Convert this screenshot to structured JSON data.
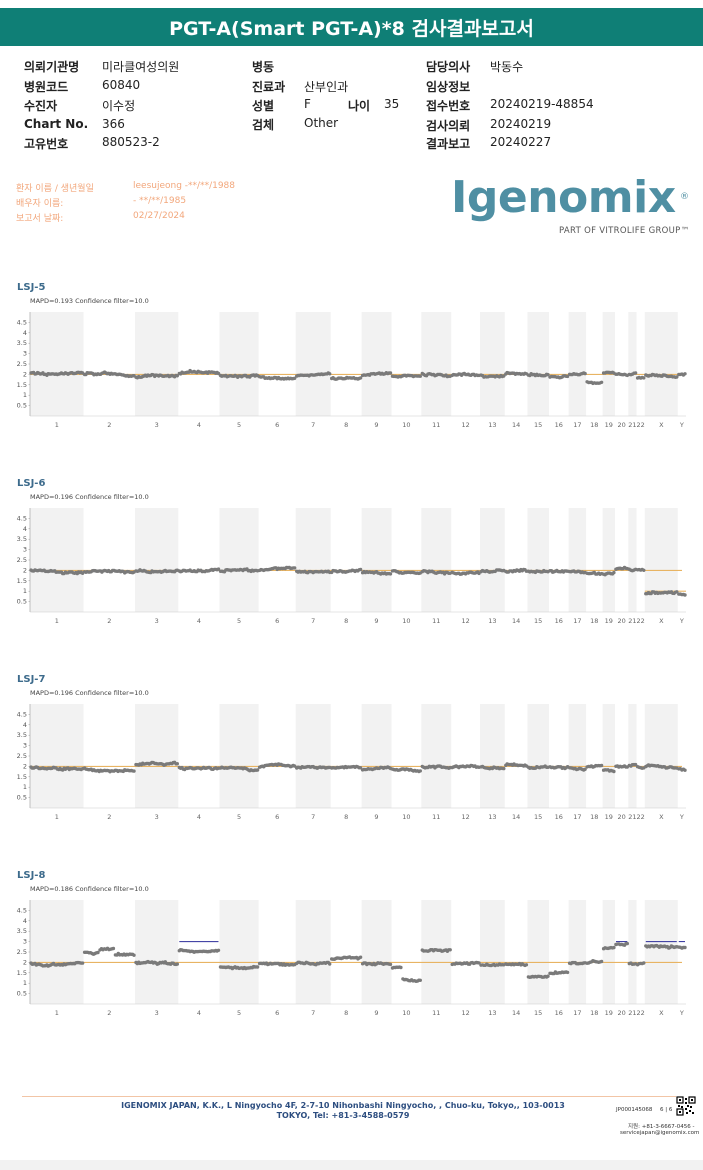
{
  "header": {
    "title": "PGT-A(Smart PGT-A)*8 검사결과보고서"
  },
  "info": [
    {
      "label": "의뢰기관명",
      "value": "미라클여성의원"
    },
    {
      "label": "병원코드",
      "value": "60840"
    },
    {
      "label": "수진자",
      "value": "이수정"
    },
    {
      "label": "Chart No.",
      "value": "366"
    },
    {
      "label": "고유번호",
      "value": "880523-2"
    },
    {
      "label": "병동",
      "value": ""
    },
    {
      "label": "진료과",
      "value": "산부인과"
    },
    {
      "label": "성별",
      "value": "F"
    },
    {
      "label": "나이",
      "value": "35"
    },
    {
      "label": "검체",
      "value": "Other"
    },
    {
      "label": "담당의사",
      "value": "박동수"
    },
    {
      "label": "임상정보",
      "value": ""
    },
    {
      "label": "접수번호",
      "value": "20240219-48854"
    },
    {
      "label": "검사의뢰",
      "value": "20240219"
    },
    {
      "label": "결과보고",
      "value": "20240227"
    }
  ],
  "patient": [
    {
      "label": "환자 이름 / 생년월일",
      "value": "leesujeong -**/**/1988"
    },
    {
      "label": "배우자 이름:",
      "value": "- **/**/1985"
    },
    {
      "label": "보고서 날짜:",
      "value": "02/27/2024"
    }
  ],
  "logo": {
    "word": "Igenomix",
    "reg": "®",
    "sub": "PART OF VITROLIFE GROUP™"
  },
  "colors": {
    "header": "#0f7f76",
    "band": "#f2f2f2",
    "points": "#7a7a7a",
    "ref": "#e8b463",
    "gain": "#2c2c9a",
    "title": "#3d6b8c"
  },
  "chart_data": [
    {
      "type": "scatter",
      "title": "LSJ-5",
      "subtitle": "MAPD=0.193 Confidence filter=10.0",
      "ylim": [
        0,
        5
      ],
      "y_ticks": [
        "4.5",
        "4",
        "3.5",
        "3",
        "2.5",
        "2",
        "1.5",
        "1",
        "0.5"
      ],
      "categories": [
        "1",
        "2",
        "3",
        "4",
        "5",
        "6",
        "7",
        "8",
        "9",
        "10",
        "11",
        "12",
        "13",
        "14",
        "15",
        "16",
        "17",
        "18",
        "19",
        "20",
        "21",
        "22",
        "X",
        "Y"
      ],
      "segments": [
        {
          "chrom": "1",
          "start": 0,
          "end": 1,
          "value": 2.05
        },
        {
          "chrom": "2",
          "start": 0,
          "end": 1,
          "value": 2.0
        },
        {
          "chrom": "3",
          "start": 0,
          "end": 1,
          "value": 1.85
        },
        {
          "chrom": "4",
          "start": 0,
          "end": 1,
          "value": 2.05
        },
        {
          "chrom": "5",
          "start": 0,
          "end": 1,
          "value": 1.95
        },
        {
          "chrom": "6",
          "start": 0,
          "end": 1,
          "value": 1.9
        },
        {
          "chrom": "7",
          "start": 0,
          "end": 1,
          "value": 1.95
        },
        {
          "chrom": "8",
          "start": 0,
          "end": 1,
          "value": 1.8
        },
        {
          "chrom": "9",
          "start": 0,
          "end": 1,
          "value": 2.0
        },
        {
          "chrom": "10",
          "start": 0,
          "end": 1,
          "value": 1.95
        },
        {
          "chrom": "11",
          "start": 0,
          "end": 1,
          "value": 2.0
        },
        {
          "chrom": "12",
          "start": 0,
          "end": 1,
          "value": 1.95
        },
        {
          "chrom": "13",
          "start": 0,
          "end": 1,
          "value": 1.95
        },
        {
          "chrom": "14",
          "start": 0,
          "end": 1,
          "value": 2.05
        },
        {
          "chrom": "15",
          "start": 0,
          "end": 1,
          "value": 1.95
        },
        {
          "chrom": "16",
          "start": 0,
          "end": 1,
          "value": 1.9
        },
        {
          "chrom": "17",
          "start": 0,
          "end": 1,
          "value": 2.0
        },
        {
          "chrom": "18",
          "start": 0,
          "end": 1,
          "value": 1.6
        },
        {
          "chrom": "19",
          "start": 0,
          "end": 1,
          "value": 2.05
        },
        {
          "chrom": "20",
          "start": 0,
          "end": 1,
          "value": 2.0
        },
        {
          "chrom": "21",
          "start": 0,
          "end": 1,
          "value": 2.0
        },
        {
          "chrom": "22",
          "start": 0,
          "end": 1,
          "value": 1.8
        },
        {
          "chrom": "X",
          "start": 0,
          "end": 1,
          "value": 1.95
        },
        {
          "chrom": "Y",
          "start": 0,
          "end": 1,
          "value": 1.95
        }
      ]
    },
    {
      "type": "scatter",
      "title": "LSJ-6",
      "subtitle": "MAPD=0.196 Confidence filter=10.0",
      "ylim": [
        0,
        5
      ],
      "y_ticks": [
        "4.5",
        "4",
        "3.5",
        "3",
        "2.5",
        "2",
        "1.5",
        "1",
        "0.5"
      ],
      "categories": [
        "1",
        "2",
        "3",
        "4",
        "5",
        "6",
        "7",
        "8",
        "9",
        "10",
        "11",
        "12",
        "13",
        "14",
        "15",
        "16",
        "17",
        "18",
        "19",
        "20",
        "21",
        "22",
        "X",
        "Y"
      ],
      "segments": [
        {
          "chrom": "1",
          "start": 0,
          "end": 1,
          "value": 2.0
        },
        {
          "chrom": "2",
          "start": 0,
          "end": 1,
          "value": 1.95
        },
        {
          "chrom": "3",
          "start": 0,
          "end": 1,
          "value": 1.95
        },
        {
          "chrom": "4",
          "start": 0,
          "end": 1,
          "value": 1.95
        },
        {
          "chrom": "5",
          "start": 0,
          "end": 1,
          "value": 1.95
        },
        {
          "chrom": "6",
          "start": 0,
          "end": 1,
          "value": 2.0
        },
        {
          "chrom": "7",
          "start": 0,
          "end": 1,
          "value": 1.95
        },
        {
          "chrom": "8",
          "start": 0,
          "end": 1,
          "value": 1.95
        },
        {
          "chrom": "9",
          "start": 0,
          "end": 1,
          "value": 1.9
        },
        {
          "chrom": "10",
          "start": 0,
          "end": 1,
          "value": 1.95
        },
        {
          "chrom": "11",
          "start": 0,
          "end": 1,
          "value": 1.95
        },
        {
          "chrom": "12",
          "start": 0,
          "end": 1,
          "value": 1.9
        },
        {
          "chrom": "13",
          "start": 0,
          "end": 1,
          "value": 1.95
        },
        {
          "chrom": "14",
          "start": 0,
          "end": 1,
          "value": 1.95
        },
        {
          "chrom": "15",
          "start": 0,
          "end": 1,
          "value": 1.95
        },
        {
          "chrom": "16",
          "start": 0,
          "end": 1,
          "value": 1.95
        },
        {
          "chrom": "17",
          "start": 0,
          "end": 1,
          "value": 1.95
        },
        {
          "chrom": "18",
          "start": 0,
          "end": 1,
          "value": 1.85
        },
        {
          "chrom": "19",
          "start": 0,
          "end": 1,
          "value": 1.8
        },
        {
          "chrom": "20",
          "start": 0,
          "end": 1,
          "value": 2.05
        },
        {
          "chrom": "21",
          "start": 0,
          "end": 1,
          "value": 2.0
        },
        {
          "chrom": "22",
          "start": 0,
          "end": 1,
          "value": 2.0
        },
        {
          "chrom": "X",
          "start": 0,
          "end": 1,
          "value": 0.9
        },
        {
          "chrom": "Y",
          "start": 0,
          "end": 1,
          "value": 0.85
        }
      ],
      "ref_steps": [
        {
          "chrom": "X",
          "value": 1.0
        },
        {
          "chrom": "Y",
          "value": 1.0
        }
      ]
    },
    {
      "type": "scatter",
      "title": "LSJ-7",
      "subtitle": "MAPD=0.196 Confidence filter=10.0",
      "ylim": [
        0,
        5
      ],
      "y_ticks": [
        "4.5",
        "4",
        "3.5",
        "3",
        "2.5",
        "2",
        "1.5",
        "1",
        "0.5"
      ],
      "categories": [
        "1",
        "2",
        "3",
        "4",
        "5",
        "6",
        "7",
        "8",
        "9",
        "10",
        "11",
        "12",
        "13",
        "14",
        "15",
        "16",
        "17",
        "18",
        "19",
        "20",
        "21",
        "22",
        "X",
        "Y"
      ],
      "segments": [
        {
          "chrom": "1",
          "start": 0,
          "end": 1,
          "value": 1.95
        },
        {
          "chrom": "2",
          "start": 0,
          "end": 1,
          "value": 1.9
        },
        {
          "chrom": "3",
          "start": 0,
          "end": 1,
          "value": 2.1
        },
        {
          "chrom": "4",
          "start": 0,
          "end": 1,
          "value": 1.95
        },
        {
          "chrom": "5",
          "start": 0,
          "end": 1,
          "value": 1.95
        },
        {
          "chrom": "6",
          "start": 0,
          "end": 1,
          "value": 2.0
        },
        {
          "chrom": "7",
          "start": 0,
          "end": 1,
          "value": 1.95
        },
        {
          "chrom": "8",
          "start": 0,
          "end": 1,
          "value": 1.95
        },
        {
          "chrom": "9",
          "start": 0,
          "end": 1,
          "value": 1.85
        },
        {
          "chrom": "10",
          "start": 0,
          "end": 1,
          "value": 1.85
        },
        {
          "chrom": "11",
          "start": 0,
          "end": 1,
          "value": 2.0
        },
        {
          "chrom": "12",
          "start": 0,
          "end": 1,
          "value": 2.0
        },
        {
          "chrom": "13",
          "start": 0,
          "end": 1,
          "value": 1.95
        },
        {
          "chrom": "14",
          "start": 0,
          "end": 1,
          "value": 2.1
        },
        {
          "chrom": "15",
          "start": 0,
          "end": 1,
          "value": 1.95
        },
        {
          "chrom": "16",
          "start": 0,
          "end": 1,
          "value": 1.95
        },
        {
          "chrom": "17",
          "start": 0,
          "end": 1,
          "value": 1.9
        },
        {
          "chrom": "18",
          "start": 0,
          "end": 1,
          "value": 2.0
        },
        {
          "chrom": "19",
          "start": 0,
          "end": 1,
          "value": 1.8
        },
        {
          "chrom": "20",
          "start": 0,
          "end": 1,
          "value": 2.0
        },
        {
          "chrom": "21",
          "start": 0,
          "end": 1,
          "value": 2.05
        },
        {
          "chrom": "22",
          "start": 0,
          "end": 1,
          "value": 2.0
        },
        {
          "chrom": "X",
          "start": 0,
          "end": 1,
          "value": 2.0
        },
        {
          "chrom": "Y",
          "start": 0,
          "end": 1,
          "value": 1.85
        }
      ]
    },
    {
      "type": "scatter",
      "title": "LSJ-8",
      "subtitle": "MAPD=0.186 Confidence filter=10.0",
      "ylim": [
        0,
        5
      ],
      "y_ticks": [
        "4.5",
        "4",
        "3.5",
        "3",
        "2.5",
        "2",
        "1.5",
        "1",
        "0.5"
      ],
      "categories": [
        "1",
        "2",
        "3",
        "4",
        "5",
        "6",
        "7",
        "8",
        "9",
        "10",
        "11",
        "12",
        "13",
        "14",
        "15",
        "16",
        "17",
        "18",
        "19",
        "20",
        "21",
        "22",
        "X",
        "Y"
      ],
      "segments": [
        {
          "chrom": "1",
          "start": 0,
          "end": 1,
          "value": 1.95
        },
        {
          "chrom": "2",
          "start": 0,
          "end": 0.3,
          "value": 2.5
        },
        {
          "chrom": "2",
          "start": 0.3,
          "end": 0.6,
          "value": 2.6
        },
        {
          "chrom": "2",
          "start": 0.6,
          "end": 1,
          "value": 2.4
        },
        {
          "chrom": "3",
          "start": 0,
          "end": 1,
          "value": 2.0
        },
        {
          "chrom": "4",
          "start": 0,
          "end": 1,
          "value": 2.55
        },
        {
          "chrom": "5",
          "start": 0,
          "end": 1,
          "value": 1.8
        },
        {
          "chrom": "6",
          "start": 0,
          "end": 1,
          "value": 1.95
        },
        {
          "chrom": "7",
          "start": 0,
          "end": 1,
          "value": 1.95
        },
        {
          "chrom": "8",
          "start": 0,
          "end": 1,
          "value": 2.15
        },
        {
          "chrom": "9",
          "start": 0,
          "end": 1,
          "value": 1.95
        },
        {
          "chrom": "10",
          "start": 0,
          "end": 0.35,
          "value": 1.7
        },
        {
          "chrom": "10",
          "start": 0.35,
          "end": 1,
          "value": 1.2
        },
        {
          "chrom": "11",
          "start": 0,
          "end": 1,
          "value": 2.55
        },
        {
          "chrom": "12",
          "start": 0,
          "end": 1,
          "value": 1.95
        },
        {
          "chrom": "13",
          "start": 0,
          "end": 1,
          "value": 1.85
        },
        {
          "chrom": "14",
          "start": 0,
          "end": 1,
          "value": 1.9
        },
        {
          "chrom": "15",
          "start": 0,
          "end": 1,
          "value": 1.3
        },
        {
          "chrom": "16",
          "start": 0,
          "end": 1,
          "value": 1.5
        },
        {
          "chrom": "17",
          "start": 0,
          "end": 1,
          "value": 1.95
        },
        {
          "chrom": "18",
          "start": 0,
          "end": 1,
          "value": 2.0
        },
        {
          "chrom": "19",
          "start": 0,
          "end": 1,
          "value": 2.65
        },
        {
          "chrom": "20",
          "start": 0,
          "end": 1,
          "value": 2.9
        },
        {
          "chrom": "21",
          "start": 0,
          "end": 1,
          "value": 1.95
        },
        {
          "chrom": "22",
          "start": 0,
          "end": 1,
          "value": 1.9
        },
        {
          "chrom": "X",
          "start": 0,
          "end": 1,
          "value": 2.8
        },
        {
          "chrom": "Y",
          "start": 0,
          "end": 1,
          "value": 2.7
        }
      ],
      "gain_lines": [
        {
          "chrom": "4",
          "value": 3.0
        },
        {
          "chrom": "20",
          "value": 3.0
        },
        {
          "chrom": "X",
          "value": 3.0
        },
        {
          "chrom": "Y",
          "value": 3.0
        }
      ]
    }
  ],
  "footer": {
    "address": "IGENOMIX JAPAN, K.K., L Ningyocho 4F, 2-7-10 Nihonbashi Ningyocho, , Chuo-ku, Tokyo,, 103-0013 TOKYO, Tel: +81-3-4588-0579",
    "code": "JP000145068",
    "page": "6 | 6",
    "tel": "지원: +81-3-6667-0456 -",
    "email": "servicejapan@igenomix.com"
  }
}
